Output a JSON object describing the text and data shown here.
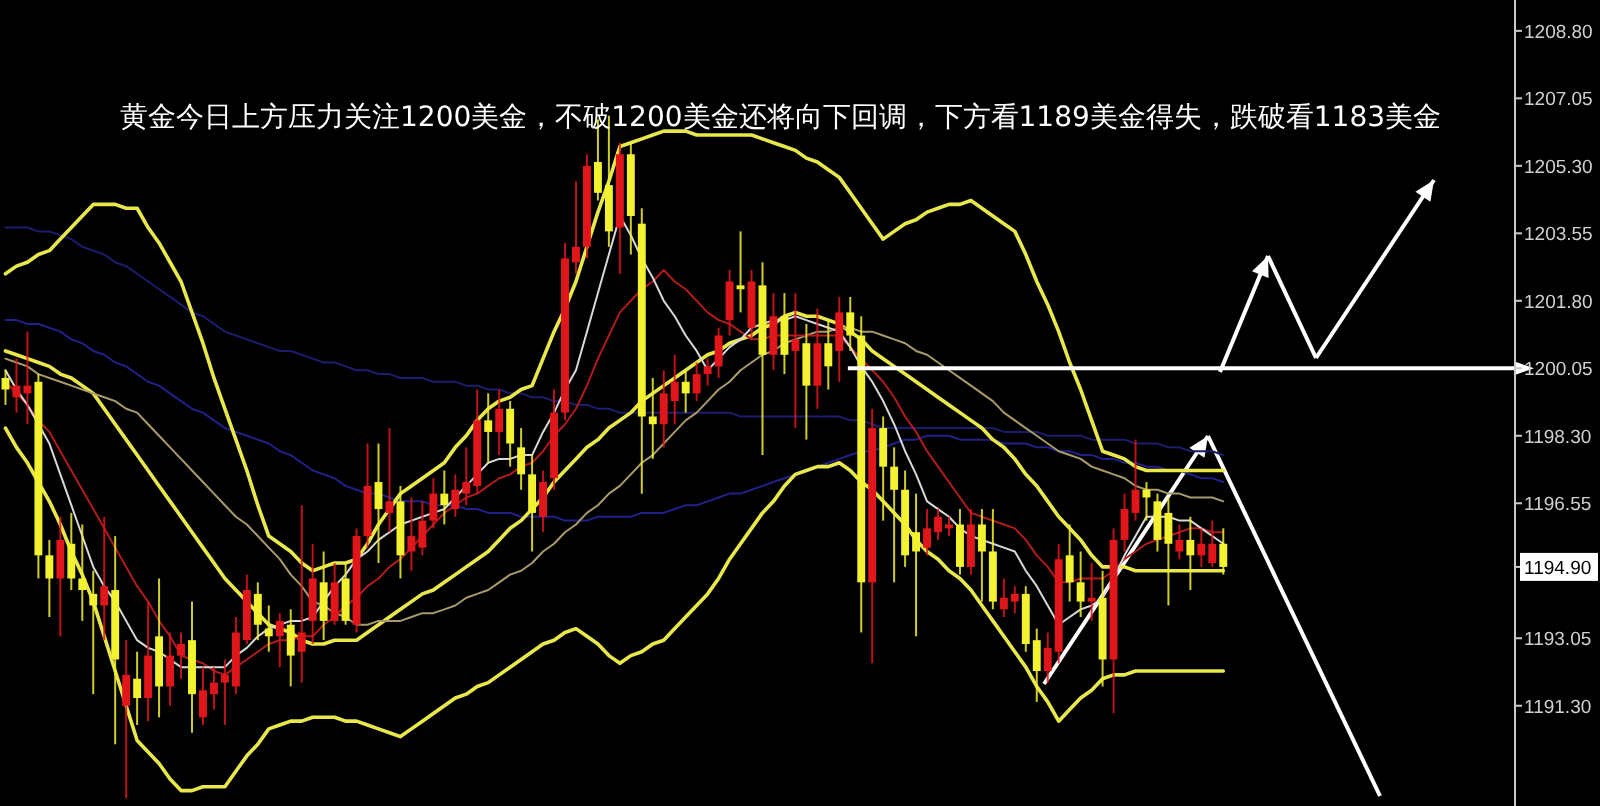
{
  "chart_data": {
    "type": "candlestick",
    "title": "黄金今日上方压力关注1200美金，不破1200美金还将向下回调，下方看1189美金得失，跌破看1183美金",
    "categories": [
      null,
      null,
      null,
      null,
      null,
      null,
      null,
      null,
      null,
      null,
      null,
      null,
      null,
      null,
      null,
      null,
      null,
      null,
      null,
      null,
      null,
      null,
      null,
      null,
      null,
      null,
      null,
      null,
      null,
      null,
      null,
      null,
      null,
      null,
      null,
      null,
      null,
      null,
      null,
      null,
      null,
      null,
      null,
      null,
      null,
      null,
      null,
      null,
      null,
      null,
      null,
      null,
      null,
      null,
      null,
      null,
      null,
      null,
      null,
      null,
      null,
      null,
      null,
      null,
      null,
      null,
      null,
      null,
      null,
      null,
      null,
      null,
      null,
      null,
      null,
      null,
      null,
      null,
      null,
      null,
      null,
      null,
      null,
      null,
      null,
      null,
      null,
      null,
      null,
      null,
      null,
      null,
      null,
      null,
      null,
      null,
      null,
      null,
      null,
      null,
      null,
      null,
      null,
      null,
      null,
      null,
      null,
      null,
      null,
      null,
      null,
      null,
      null,
      null,
      null,
      null,
      null,
      null,
      null,
      null,
      null,
      null,
      null,
      null,
      null,
      null,
      null,
      null,
      null,
      null,
      null,
      null,
      null,
      null,
      null,
      null,
      null,
      null
    ],
    "ohlc": [
      [
        1199.8,
        1200.0,
        1199.1,
        1199.5
      ],
      [
        1199.3,
        1200.3,
        1198.9,
        1199.6
      ],
      [
        1199.4,
        1201.0,
        1198.6,
        1199.6
      ],
      [
        1199.7,
        1199.9,
        1194.6,
        1195.2
      ],
      [
        1195.2,
        1195.6,
        1193.6,
        1194.6
      ],
      [
        1194.6,
        1196.2,
        1193.1,
        1195.6
      ],
      [
        1195.5,
        1196.3,
        1194.3,
        1194.6
      ],
      [
        1194.6,
        1196.0,
        1193.5,
        1194.3
      ],
      [
        1194.2,
        1194.8,
        1191.6,
        1193.9
      ],
      [
        1193.9,
        1196.2,
        1193.0,
        1194.4
      ],
      [
        1194.3,
        1195.7,
        1190.3,
        1192.5
      ],
      [
        1191.3,
        1193.0,
        1188.9,
        1192.1
      ],
      [
        1192.0,
        1192.7,
        1190.8,
        1191.5
      ],
      [
        1191.5,
        1194.0,
        1190.9,
        1192.6
      ],
      [
        1193.1,
        1194.6,
        1191.0,
        1191.8
      ],
      [
        1191.8,
        1193.2,
        1191.3,
        1192.6
      ],
      [
        1192.6,
        1193.2,
        1192.0,
        1192.9
      ],
      [
        1193.0,
        1194.0,
        1190.6,
        1191.6
      ],
      [
        1191.0,
        1192.3,
        1190.8,
        1191.7
      ],
      [
        1191.6,
        1192.3,
        1191.2,
        1191.9
      ],
      [
        1191.9,
        1192.5,
        1190.8,
        1192.1
      ],
      [
        1191.8,
        1193.6,
        1191.6,
        1193.2
      ],
      [
        1193.0,
        1194.7,
        1192.9,
        1194.3
      ],
      [
        1194.2,
        1194.5,
        1193.0,
        1193.4
      ],
      [
        1193.3,
        1193.9,
        1192.7,
        1193.1
      ],
      [
        1193.1,
        1193.7,
        1192.3,
        1193.5
      ],
      [
        1193.4,
        1193.8,
        1191.8,
        1192.6
      ],
      [
        1192.7,
        1196.5,
        1191.9,
        1193.2
      ],
      [
        1193.5,
        1195.5,
        1192.9,
        1194.6
      ],
      [
        1194.5,
        1195.3,
        1193.0,
        1193.5
      ],
      [
        1193.5,
        1195.0,
        1193.4,
        1194.5
      ],
      [
        1194.6,
        1195.0,
        1193.4,
        1193.5
      ],
      [
        1193.4,
        1195.9,
        1193.2,
        1195.7
      ],
      [
        1195.7,
        1198.1,
        1195.4,
        1197.0
      ],
      [
        1197.1,
        1198.1,
        1195.0,
        1196.4
      ],
      [
        1196.3,
        1198.5,
        1195.8,
        1196.6
      ],
      [
        1196.6,
        1197.0,
        1194.6,
        1195.2
      ],
      [
        1195.3,
        1196.7,
        1194.8,
        1195.7
      ],
      [
        1195.4,
        1196.6,
        1195.2,
        1196.1
      ],
      [
        1196.1,
        1197.2,
        1195.9,
        1196.8
      ],
      [
        1196.8,
        1197.4,
        1196.0,
        1196.5
      ],
      [
        1196.4,
        1197.3,
        1196.2,
        1196.9
      ],
      [
        1196.8,
        1198.0,
        1196.5,
        1197.1
      ],
      [
        1197.0,
        1199.5,
        1196.8,
        1198.7
      ],
      [
        1198.7,
        1199.4,
        1197.6,
        1198.4
      ],
      [
        1198.4,
        1199.5,
        1197.8,
        1199.0
      ],
      [
        1199.0,
        1199.2,
        1197.5,
        1198.1
      ],
      [
        1198.0,
        1198.5,
        1196.9,
        1197.3
      ],
      [
        1197.3,
        1197.8,
        1195.3,
        1196.3
      ],
      [
        1196.2,
        1197.4,
        1195.8,
        1197.1
      ],
      [
        1197.2,
        1199.5,
        1196.9,
        1198.9
      ],
      [
        1198.9,
        1203.3,
        1198.7,
        1202.9
      ],
      [
        1202.8,
        1204.9,
        1202.5,
        1203.2
      ],
      [
        1203.2,
        1205.6,
        1202.9,
        1205.3
      ],
      [
        1205.4,
        1206.5,
        1204.4,
        1204.6
      ],
      [
        1204.8,
        1206.6,
        1203.2,
        1203.6
      ],
      [
        1203.7,
        1205.9,
        1202.5,
        1205.6
      ],
      [
        1205.6,
        1205.9,
        1203.0,
        1204.0
      ],
      [
        1203.8,
        1204.2,
        1196.8,
        1198.8
      ],
      [
        1198.8,
        1199.8,
        1197.7,
        1198.6
      ],
      [
        1198.6,
        1200.0,
        1198.0,
        1199.4
      ],
      [
        1199.2,
        1200.4,
        1198.6,
        1199.7
      ],
      [
        1199.7,
        1200.0,
        1198.9,
        1199.4
      ],
      [
        1199.4,
        1200.2,
        1199.2,
        1199.9
      ],
      [
        1199.9,
        1200.3,
        1199.6,
        1200.1
      ],
      [
        1200.1,
        1201.1,
        1199.8,
        1200.9
      ],
      [
        1201.3,
        1202.6,
        1200.9,
        1202.3
      ],
      [
        1202.2,
        1203.6,
        1201.5,
        1202.1
      ],
      [
        1201.1,
        1202.6,
        1200.8,
        1202.3
      ],
      [
        1202.2,
        1202.8,
        1197.8,
        1200.4
      ],
      [
        1200.4,
        1202.0,
        1200.0,
        1201.4
      ],
      [
        1201.4,
        1202.0,
        1199.9,
        1200.4
      ],
      [
        1200.5,
        1202.0,
        1198.5,
        1200.8
      ],
      [
        1200.7,
        1201.2,
        1198.2,
        1199.6
      ],
      [
        1199.6,
        1201.6,
        1199.0,
        1200.7
      ],
      [
        1200.7,
        1201.3,
        1199.5,
        1200.1
      ],
      [
        1200.5,
        1201.9,
        1199.7,
        1201.5
      ],
      [
        1201.5,
        1201.9,
        1200.5,
        1200.9
      ],
      [
        1200.9,
        1201.4,
        1193.2,
        1194.5
      ],
      [
        1194.5,
        1199.0,
        1192.4,
        1198.5
      ],
      [
        1198.5,
        1198.8,
        1196.1,
        1197.5
      ],
      [
        1197.5,
        1198.0,
        1194.5,
        1196.9
      ],
      [
        1196.9,
        1197.4,
        1194.9,
        1195.2
      ],
      [
        1195.8,
        1196.8,
        1193.1,
        1195.3
      ],
      [
        1195.4,
        1196.4,
        1195.2,
        1195.9
      ],
      [
        1195.8,
        1196.4,
        1195.6,
        1196.2
      ],
      [
        1195.9,
        1196.2,
        1195.7,
        1196.0
      ],
      [
        1196.0,
        1196.4,
        1194.7,
        1194.9
      ],
      [
        1194.9,
        1196.4,
        1194.7,
        1196.0
      ],
      [
        1196.0,
        1196.4,
        1194.0,
        1195.3
      ],
      [
        1195.3,
        1196.4,
        1193.8,
        1194.0
      ],
      [
        1193.8,
        1194.6,
        1193.6,
        1194.1
      ],
      [
        1194.0,
        1194.4,
        1193.7,
        1194.2
      ],
      [
        1194.2,
        1194.4,
        1192.7,
        1192.9
      ],
      [
        1193.0,
        1193.3,
        1191.4,
        1192.2
      ],
      [
        1192.2,
        1193.2,
        1191.9,
        1192.8
      ],
      [
        1192.7,
        1195.5,
        1192.4,
        1195.1
      ],
      [
        1195.2,
        1196.0,
        1194.0,
        1194.5
      ],
      [
        1194.5,
        1195.3,
        1193.6,
        1194.0
      ],
      [
        1194.0,
        1195.0,
        1193.5,
        1194.1
      ],
      [
        1194.1,
        1194.8,
        1191.8,
        1192.5
      ],
      [
        1192.5,
        1195.9,
        1191.1,
        1195.6
      ],
      [
        1195.6,
        1196.8,
        1195.3,
        1196.4
      ],
      [
        1196.3,
        1198.2,
        1196.1,
        1196.9
      ],
      [
        1196.9,
        1197.1,
        1196.1,
        1196.7
      ],
      [
        1196.6,
        1196.8,
        1195.3,
        1195.6
      ],
      [
        1196.3,
        1196.7,
        1193.9,
        1195.5
      ],
      [
        1195.3,
        1196.0,
        1195.1,
        1195.6
      ],
      [
        1195.6,
        1196.2,
        1194.3,
        1195.2
      ],
      [
        1195.2,
        1195.9,
        1194.9,
        1195.5
      ],
      [
        1195.0,
        1196.1,
        1194.9,
        1195.5
      ],
      [
        1195.5,
        1195.9,
        1194.7,
        1194.9
      ],
      null,
      null,
      null,
      null,
      null,
      null,
      null,
      null,
      null,
      null,
      null,
      null,
      null,
      null,
      null,
      null,
      null,
      null,
      null,
      null,
      null,
      null,
      null,
      null,
      null,
      null
    ],
    "series": [
      {
        "type": "line",
        "color": "#1c1c6e",
        "values": [
          1203.7,
          1203.7,
          1203.7,
          1203.6,
          1203.6,
          1203.5,
          1203.4,
          1203.2,
          1203.1,
          1203.0,
          1202.8,
          1202.7,
          1202.5,
          1202.3,
          1202.1,
          1201.9,
          1201.7,
          1201.5,
          1201.4,
          1201.2,
          1201.0,
          1200.9,
          1200.8,
          1200.7,
          1200.6,
          1200.5,
          1200.5,
          1200.4,
          1200.3,
          1200.2,
          1200.2,
          1200.1,
          1200.0,
          1200.0,
          1199.9,
          1199.9,
          1199.8,
          1199.8,
          1199.8,
          1199.7,
          1199.7,
          1199.7,
          1199.6,
          1199.6,
          1199.5,
          1199.5,
          1199.4,
          1199.4,
          1199.3,
          1199.3,
          1199.2,
          1199.2,
          1199.1,
          1199.1,
          1199.0,
          1199.0,
          1198.9,
          1198.9,
          1198.9,
          1198.9,
          1198.9,
          1198.9,
          1198.9,
          1198.9,
          1198.9,
          1198.9,
          1198.9,
          1198.8,
          1198.8,
          1198.8,
          1198.8,
          1198.8,
          1198.8,
          1198.8,
          1198.8,
          1198.8,
          1198.8,
          1198.7,
          1198.7,
          1198.6,
          1198.5,
          1198.5,
          1198.5,
          1198.5,
          1198.5,
          1198.5,
          1198.5,
          1198.5,
          1198.5,
          1198.5,
          1198.5,
          1198.4,
          1198.4,
          1198.4,
          1198.4,
          1198.3,
          1198.3,
          1198.3,
          1198.3,
          1198.2,
          1198.2,
          1198.2,
          1198.2,
          1198.1,
          1198.1,
          1198.1,
          1198.0,
          1198.0,
          1197.9,
          1197.9,
          1197.9,
          1197.8,
          null,
          null,
          null,
          null,
          null,
          null,
          null,
          null,
          null,
          null,
          null,
          null,
          null,
          null,
          null,
          null,
          null,
          null,
          null,
          null,
          null,
          null,
          null,
          null,
          null,
          null
        ]
      },
      {
        "type": "line",
        "color": "#202088",
        "values": [
          1201.3,
          1201.3,
          1201.2,
          1201.2,
          1201.1,
          1201.0,
          1200.8,
          1200.7,
          1200.5,
          1200.4,
          1200.2,
          1200.1,
          1199.9,
          1199.7,
          1199.6,
          1199.4,
          1199.2,
          1199.0,
          1198.9,
          1198.7,
          1198.5,
          1198.4,
          1198.3,
          1198.2,
          1198.1,
          1197.9,
          1197.8,
          1197.6,
          1197.4,
          1197.3,
          1197.2,
          1197.0,
          1196.9,
          1196.8,
          1196.8,
          1196.7,
          1196.6,
          1196.6,
          1196.6,
          1196.5,
          1196.5,
          1196.5,
          1196.4,
          1196.4,
          1196.3,
          1196.3,
          1196.3,
          1196.2,
          1196.2,
          1196.2,
          1196.2,
          1196.1,
          1196.1,
          1196.1,
          1196.2,
          1196.2,
          1196.2,
          1196.2,
          1196.3,
          1196.3,
          1196.3,
          1196.4,
          1196.5,
          1196.5,
          1196.6,
          1196.7,
          1196.8,
          1196.8,
          1196.9,
          1197.0,
          1197.1,
          1197.2,
          1197.3,
          1197.4,
          1197.5,
          1197.6,
          1197.7,
          1197.8,
          1197.9,
          1197.9,
          1198.0,
          1198.1,
          1198.2,
          1198.2,
          1198.3,
          1198.3,
          1198.3,
          1198.2,
          1198.2,
          1198.2,
          1198.2,
          1198.1,
          1198.1,
          1198.1,
          1198.0,
          1198.0,
          1197.9,
          1197.9,
          1197.8,
          1197.8,
          1197.7,
          1197.7,
          1197.6,
          1197.6,
          1197.5,
          1197.5,
          1197.4,
          1197.4,
          1197.3,
          1197.2,
          1197.2,
          1197.1,
          null,
          null,
          null,
          null,
          null,
          null,
          null,
          null,
          null,
          null,
          null,
          null,
          null,
          null,
          null,
          null,
          null,
          null,
          null,
          null,
          null,
          null,
          null,
          null,
          null,
          null
        ]
      },
      {
        "type": "line",
        "color": "#e8e84a",
        "values": [
          1202.5,
          1202.7,
          1202.8,
          1203.0,
          1203.1,
          1203.4,
          1203.7,
          1204.0,
          1204.3,
          1204.3,
          1204.3,
          1204.2,
          1204.2,
          1203.7,
          1203.3,
          1202.8,
          1202.3,
          1201.5,
          1200.7,
          1199.8,
          1199.0,
          1198.2,
          1197.4,
          1196.5,
          1195.7,
          1195.5,
          1195.3,
          1195.0,
          1194.8,
          1194.9,
          1195.0,
          1195.0,
          1195.1,
          1195.5,
          1196.0,
          1196.4,
          1196.8,
          1197.0,
          1197.2,
          1197.4,
          1197.6,
          1198.0,
          1198.3,
          1198.7,
          1199.0,
          1199.2,
          1199.3,
          1199.5,
          1199.6,
          1200.3,
          1201.0,
          1201.6,
          1202.3,
          1203.2,
          1204.1,
          1204.9,
          1205.8,
          1205.9,
          1206.0,
          1206.1,
          1206.2,
          1206.2,
          1206.2,
          1206.1,
          1206.1,
          1206.1,
          1206.1,
          1206.1,
          1206.1,
          1206.0,
          1205.9,
          1205.8,
          1205.7,
          1205.5,
          1205.4,
          1205.2,
          1205.0,
          1204.6,
          1204.2,
          1203.8,
          1203.4,
          1203.6,
          1203.8,
          1203.9,
          1204.1,
          1204.2,
          1204.3,
          1204.3,
          1204.4,
          1204.2,
          1204.0,
          1203.8,
          1203.6,
          1203.0,
          1202.3,
          1201.7,
          1201.0,
          1200.2,
          1199.5,
          1198.7,
          1197.9,
          1197.8,
          1197.7,
          1197.5,
          1197.4,
          1197.4,
          1197.4,
          1197.4,
          1197.4,
          1197.4,
          1197.4,
          1197.4,
          null,
          null,
          null,
          null,
          null,
          null,
          null,
          null,
          null,
          null,
          null,
          null,
          null,
          null,
          null,
          null,
          null,
          null,
          null,
          null,
          null,
          null,
          null,
          null,
          null,
          null
        ]
      },
      {
        "type": "line",
        "color": "#e8e84a",
        "values": [
          1200.5,
          1200.4,
          1200.3,
          1200.2,
          1200.1,
          1199.9,
          1199.8,
          1199.6,
          1199.4,
          1199.0,
          1198.6,
          1198.2,
          1197.8,
          1197.4,
          1197.0,
          1196.6,
          1196.2,
          1195.8,
          1195.4,
          1195.0,
          1194.6,
          1194.3,
          1194.0,
          1193.7,
          1193.4,
          1193.3,
          1193.2,
          1193.0,
          1192.9,
          1192.9,
          1193.0,
          1193.0,
          1193.0,
          1193.2,
          1193.4,
          1193.6,
          1193.8,
          1194.0,
          1194.2,
          1194.3,
          1194.5,
          1194.7,
          1194.9,
          1195.1,
          1195.3,
          1195.6,
          1195.9,
          1196.1,
          1196.4,
          1196.7,
          1197.1,
          1197.4,
          1197.7,
          1198.0,
          1198.2,
          1198.5,
          1198.7,
          1198.9,
          1199.2,
          1199.4,
          1199.6,
          1199.8,
          1200.0,
          1200.2,
          1200.4,
          1200.5,
          1200.7,
          1200.8,
          1200.9,
          1201.1,
          1201.2,
          1201.4,
          1201.5,
          1201.4,
          1201.4,
          1201.3,
          1201.2,
          1201.0,
          1200.8,
          1200.5,
          1200.3,
          1200.1,
          1199.9,
          1199.7,
          1199.5,
          1199.3,
          1199.1,
          1198.9,
          1198.7,
          1198.5,
          1198.2,
          1198.0,
          1197.7,
          1197.3,
          1197.0,
          1196.6,
          1196.2,
          1195.9,
          1195.6,
          1195.2,
          1194.9,
          1194.9,
          1194.9,
          1194.8,
          1194.8,
          1194.8,
          1194.8,
          1194.8,
          1194.8,
          1194.8,
          1194.8,
          1194.8,
          null,
          null,
          null,
          null,
          null,
          null,
          null,
          null,
          null,
          null,
          null,
          null,
          null,
          null,
          null,
          null,
          null,
          null,
          null,
          null,
          null,
          null,
          null,
          null,
          null,
          null
        ]
      },
      {
        "type": "line",
        "color": "#e8e84a",
        "values": [
          1198.5,
          1198.0,
          1197.6,
          1197.1,
          1196.6,
          1196.0,
          1195.3,
          1194.7,
          1194.0,
          1193.1,
          1192.2,
          1191.3,
          1190.4,
          1190.1,
          1189.8,
          1189.4,
          1189.1,
          1189.1,
          1189.2,
          1189.2,
          1189.2,
          1189.6,
          1190.0,
          1190.3,
          1190.7,
          1190.8,
          1190.9,
          1190.9,
          1191.0,
          1191.0,
          1191.0,
          1190.9,
          1190.9,
          1190.8,
          1190.7,
          1190.6,
          1190.5,
          1190.7,
          1190.9,
          1191.1,
          1191.3,
          1191.5,
          1191.6,
          1191.8,
          1191.9,
          1192.1,
          1192.3,
          1192.5,
          1192.7,
          1192.9,
          1193.0,
          1193.2,
          1193.3,
          1193.1,
          1192.9,
          1192.6,
          1192.4,
          1192.6,
          1192.7,
          1192.9,
          1193.0,
          1193.3,
          1193.6,
          1193.9,
          1194.2,
          1194.6,
          1195.1,
          1195.5,
          1195.9,
          1196.3,
          1196.6,
          1197.0,
          1197.3,
          1197.4,
          1197.5,
          1197.5,
          1197.6,
          1197.4,
          1197.1,
          1196.9,
          1196.6,
          1196.3,
          1196.0,
          1195.6,
          1195.3,
          1195.1,
          1194.8,
          1194.6,
          1194.3,
          1193.9,
          1193.5,
          1193.1,
          1192.7,
          1192.3,
          1191.8,
          1191.4,
          1190.9,
          1191.2,
          1191.5,
          1191.7,
          1192.0,
          1192.1,
          1192.1,
          1192.2,
          1192.2,
          1192.2,
          1192.2,
          1192.2,
          1192.2,
          1192.2,
          1192.2,
          1192.2,
          null,
          null,
          null,
          null,
          null,
          null,
          null,
          null,
          null,
          null,
          null,
          null,
          null,
          null,
          null,
          null,
          null,
          null,
          null,
          null,
          null,
          null,
          null,
          null,
          null,
          null
        ]
      },
      {
        "type": "line",
        "color": "#a89a6a",
        "values": [
          1200.3,
          1200.2,
          1200.1,
          1199.9,
          1199.8,
          1199.7,
          1199.6,
          1199.5,
          1199.4,
          1199.3,
          1199.2,
          1199.0,
          1198.9,
          1198.6,
          1198.3,
          1198.0,
          1197.7,
          1197.4,
          1197.1,
          1196.8,
          1196.5,
          1196.2,
          1196.0,
          1195.7,
          1195.4,
          1195.1,
          1194.7,
          1194.4,
          1194.0,
          1193.9,
          1193.7,
          1193.6,
          1193.4,
          1193.4,
          1193.5,
          1193.5,
          1193.5,
          1193.6,
          1193.7,
          1193.7,
          1193.8,
          1193.9,
          1194.1,
          1194.2,
          1194.3,
          1194.5,
          1194.7,
          1194.8,
          1195.0,
          1195.3,
          1195.5,
          1195.8,
          1196.0,
          1196.3,
          1196.5,
          1196.8,
          1197.0,
          1197.3,
          1197.6,
          1197.8,
          1198.1,
          1198.4,
          1198.7,
          1198.9,
          1199.2,
          1199.5,
          1199.7,
          1200.0,
          1200.2,
          1200.4,
          1200.5,
          1200.7,
          1200.8,
          1200.9,
          1201.0,
          1201.0,
          1201.1,
          1201.1,
          1201.0,
          1201.0,
          1200.9,
          1200.8,
          1200.7,
          1200.5,
          1200.4,
          1200.2,
          1200.0,
          1199.8,
          1199.6,
          1199.4,
          1199.2,
          1198.9,
          1198.7,
          1198.5,
          1198.3,
          1198.1,
          1197.9,
          1197.8,
          1197.7,
          1197.5,
          1197.4,
          1197.3,
          1197.2,
          1197.0,
          1196.9,
          1196.9,
          1196.8,
          1196.8,
          1196.7,
          1196.7,
          1196.7,
          1196.6,
          null,
          null,
          null,
          null,
          null,
          null,
          null,
          null,
          null,
          null,
          null,
          null,
          null,
          null,
          null,
          null,
          null,
          null,
          null,
          null,
          null,
          null,
          null,
          null,
          null,
          null
        ]
      },
      {
        "type": "line",
        "color": "#b01c1c",
        "values": [
          1199.7,
          1199.4,
          1199.1,
          1198.7,
          1198.4,
          1197.9,
          1197.4,
          1196.9,
          1196.4,
          1195.9,
          1195.4,
          1194.9,
          1194.4,
          1194.0,
          1193.5,
          1193.1,
          1192.6,
          1192.5,
          1192.4,
          1192.2,
          1192.1,
          1192.3,
          1192.5,
          1192.7,
          1192.9,
          1193.0,
          1193.0,
          1193.1,
          1193.1,
          1193.4,
          1193.6,
          1193.9,
          1194.1,
          1194.4,
          1194.6,
          1194.9,
          1195.1,
          1195.4,
          1195.7,
          1196.0,
          1196.3,
          1196.5,
          1196.7,
          1196.8,
          1197.0,
          1197.2,
          1197.3,
          1197.5,
          1197.6,
          1197.9,
          1198.3,
          1198.6,
          1199.0,
          1199.6,
          1200.3,
          1200.9,
          1201.5,
          1201.8,
          1202.1,
          1202.3,
          1202.6,
          1202.3,
          1202.1,
          1201.8,
          1201.5,
          1201.3,
          1201.2,
          1201.0,
          1200.8,
          1200.8,
          1200.9,
          1200.9,
          1200.9,
          1200.9,
          1200.9,
          1200.9,
          1200.9,
          1200.6,
          1200.3,
          1200.0,
          1199.7,
          1199.3,
          1198.8,
          1198.4,
          1197.9,
          1197.5,
          1197.1,
          1196.7,
          1196.3,
          1196.2,
          1196.1,
          1196.0,
          1195.9,
          1195.6,
          1195.2,
          1194.9,
          1194.5,
          1194.5,
          1194.6,
          1194.6,
          1194.6,
          1194.8,
          1195.1,
          1195.3,
          1195.5,
          1195.6,
          1195.7,
          1195.8,
          1195.9,
          1195.9,
          1195.8,
          1195.8,
          null,
          null,
          null,
          null,
          null,
          null,
          null,
          null,
          null,
          null,
          null,
          null,
          null,
          null,
          null,
          null,
          null,
          null,
          null,
          null,
          null,
          null,
          null,
          null,
          null,
          null
        ]
      },
      {
        "type": "line",
        "color": "#d8d8d8",
        "values": [
          1200.0,
          1199.5,
          1199.1,
          1198.6,
          1198.1,
          1197.3,
          1196.5,
          1195.7,
          1194.9,
          1194.4,
          1194.0,
          1193.5,
          1193.0,
          1192.8,
          1192.7,
          1192.5,
          1192.3,
          1192.3,
          1192.3,
          1192.3,
          1192.3,
          1192.6,
          1192.8,
          1193.1,
          1193.3,
          1193.4,
          1193.5,
          1193.5,
          1193.6,
          1194.0,
          1194.4,
          1194.7,
          1195.1,
          1195.3,
          1195.6,
          1195.8,
          1196.0,
          1196.1,
          1196.2,
          1196.3,
          1196.4,
          1196.7,
          1197.0,
          1197.3,
          1197.6,
          1197.7,
          1197.7,
          1197.8,
          1197.8,
          1198.4,
          1198.9,
          1199.5,
          1200.0,
          1201.0,
          1202.0,
          1203.0,
          1204.0,
          1203.5,
          1202.9,
          1202.4,
          1201.8,
          1201.4,
          1200.9,
          1200.5,
          1200.0,
          1200.3,
          1200.6,
          1200.8,
          1201.1,
          1201.2,
          1201.3,
          1201.3,
          1201.4,
          1201.3,
          1201.2,
          1201.1,
          1201.0,
          1200.6,
          1200.1,
          1199.7,
          1199.2,
          1198.6,
          1197.9,
          1197.3,
          1196.6,
          1196.4,
          1196.2,
          1195.9,
          1195.7,
          1195.6,
          1195.5,
          1195.4,
          1195.3,
          1194.8,
          1194.4,
          1193.9,
          1193.4,
          1193.6,
          1193.8,
          1193.9,
          1194.1,
          1194.6,
          1195.2,
          1195.7,
          1196.2,
          1196.2,
          1196.2,
          1196.1,
          1196.1,
          1195.9,
          1195.7,
          1195.5,
          null,
          null,
          null,
          null,
          null,
          null,
          null,
          null,
          null,
          null,
          null,
          null,
          null,
          null,
          null,
          null,
          null,
          null,
          null,
          null,
          null,
          null,
          null,
          null,
          null,
          null
        ]
      }
    ],
    "ref_lines": [
      {
        "axis": "y",
        "value": 1200.05,
        "color": "#ffffff"
      }
    ],
    "ylim": [
      1188.7,
      1209.6
    ],
    "yticks": [
      {
        "value": 1191.3,
        "label": "1191.30"
      },
      {
        "value": 1193.05,
        "label": "1193.05"
      },
      {
        "value": 1194.9,
        "label": "1194.90"
      },
      {
        "value": 1196.55,
        "label": "1196.55"
      },
      {
        "value": 1198.3,
        "label": "1198.30"
      },
      {
        "value": 1200.05,
        "label": "1200.05"
      },
      {
        "value": 1201.8,
        "label": "1201.80"
      },
      {
        "value": 1203.55,
        "label": "1203.55"
      },
      {
        "value": 1205.3,
        "label": "1205.30"
      },
      {
        "value": 1207.05,
        "label": "1207.05"
      },
      {
        "value": 1208.8,
        "label": "1208.80"
      }
    ],
    "tick_labels": "y"
  }
}
